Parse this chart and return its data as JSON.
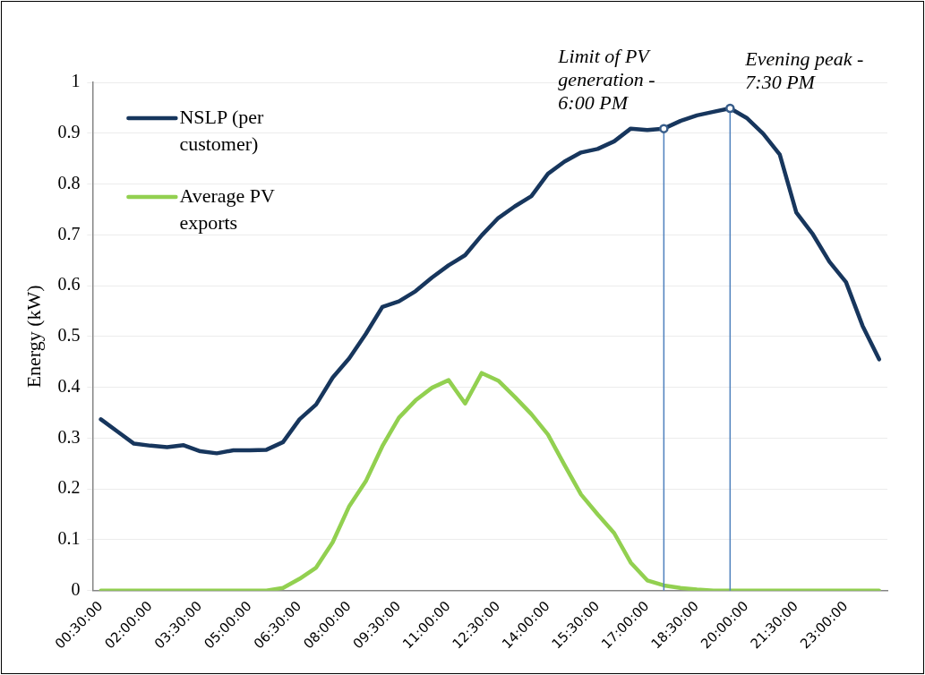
{
  "chart_data": {
    "type": "line",
    "ylabel": "Energy (kW)",
    "x": [
      0.5,
      1,
      1.5,
      2,
      2.5,
      3,
      3.5,
      4,
      4.5,
      5,
      5.5,
      6,
      6.5,
      7,
      7.5,
      8,
      8.5,
      9,
      9.5,
      10,
      10.5,
      11,
      11.5,
      12,
      12.5,
      13,
      13.5,
      14,
      14.5,
      15,
      15.5,
      16,
      16.5,
      17,
      17.5,
      18,
      18.5,
      19,
      19.5,
      20,
      20.5,
      21,
      21.5,
      22,
      22.5,
      23,
      23.5,
      24
    ],
    "xlim": [
      0.25,
      24.25
    ],
    "xticks": [
      {
        "value": 0.5,
        "label": "00:30:00"
      },
      {
        "value": 2,
        "label": "02:00:00"
      },
      {
        "value": 3.5,
        "label": "03:30:00"
      },
      {
        "value": 5,
        "label": "05:00:00"
      },
      {
        "value": 6.5,
        "label": "06:30:00"
      },
      {
        "value": 8,
        "label": "08:00:00"
      },
      {
        "value": 9.5,
        "label": "09:30:00"
      },
      {
        "value": 11,
        "label": "11:00:00"
      },
      {
        "value": 12.5,
        "label": "12:30:00"
      },
      {
        "value": 14,
        "label": "14:00:00"
      },
      {
        "value": 15.5,
        "label": "15:30:00"
      },
      {
        "value": 17,
        "label": "17:00:00"
      },
      {
        "value": 18.5,
        "label": "18:30:00"
      },
      {
        "value": 20,
        "label": "20:00:00"
      },
      {
        "value": 21.5,
        "label": "21:30:00"
      },
      {
        "value": 23,
        "label": "23:00:00"
      }
    ],
    "ylim": [
      0,
      1
    ],
    "yticks": [
      0,
      0.1,
      0.2,
      0.3,
      0.4,
      0.5,
      0.6,
      0.7,
      0.8,
      0.9,
      1
    ],
    "series": [
      {
        "name": "NSLP (per customer)",
        "color": "#17365d",
        "values": [
          0.337,
          0.313,
          0.289,
          0.285,
          0.282,
          0.286,
          0.274,
          0.27,
          0.276,
          0.276,
          0.277,
          0.292,
          0.337,
          0.366,
          0.419,
          0.457,
          0.505,
          0.558,
          0.569,
          0.589,
          0.616,
          0.64,
          0.66,
          0.699,
          0.733,
          0.756,
          0.776,
          0.82,
          0.844,
          0.862,
          0.869,
          0.884,
          0.909,
          0.906,
          0.909,
          0.924,
          0.935,
          0.942,
          0.949,
          0.93,
          0.899,
          0.858,
          0.744,
          0.701,
          0.647,
          0.607,
          0.521,
          0.455
        ]
      },
      {
        "name": "Average PV exports",
        "color": "#92d050",
        "values": [
          0,
          0,
          0,
          0,
          0,
          0,
          0,
          0,
          0,
          0,
          0,
          0.005,
          0.023,
          0.045,
          0.095,
          0.166,
          0.215,
          0.284,
          0.34,
          0.374,
          0.399,
          0.414,
          0.368,
          0.428,
          0.413,
          0.381,
          0.347,
          0.307,
          0.247,
          0.189,
          0.15,
          0.113,
          0.055,
          0.02,
          0.01,
          0.005,
          0.002,
          0,
          0,
          0,
          0,
          0,
          0,
          0,
          0,
          0,
          0,
          0
        ]
      }
    ],
    "ref_lines": [
      {
        "axis": "x",
        "value": 17.5,
        "color": "#4f81bd"
      },
      {
        "axis": "x",
        "value": 19.5,
        "color": "#4f81bd"
      }
    ],
    "annotations": [
      "Limit of PV generation - 6:00 PM",
      "Evening peak - 7:30 PM"
    ],
    "grid": "y",
    "legend": "top left",
    "marker": "none",
    "line_style": "solid"
  }
}
